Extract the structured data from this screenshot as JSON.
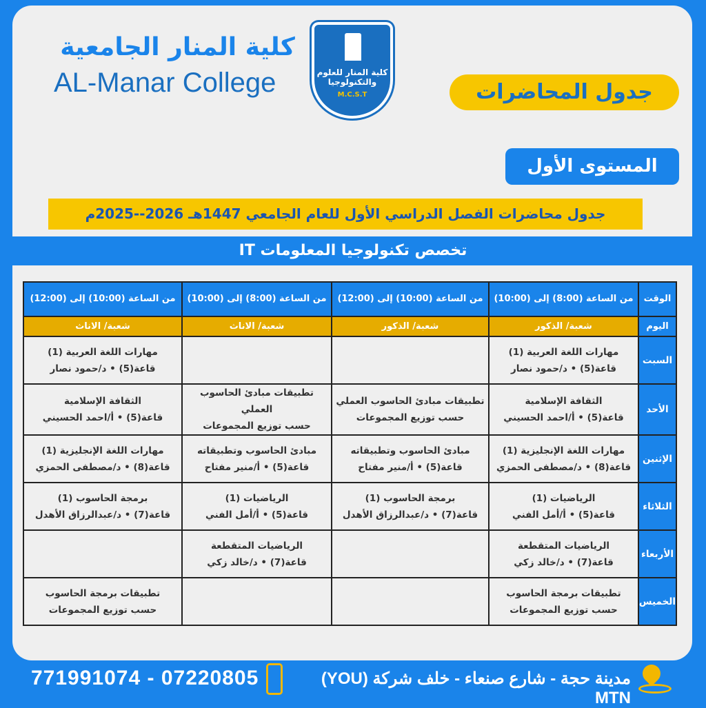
{
  "header": {
    "logo_ar": "كلية المنار الجامعية",
    "logo_en": "AL-Manar College",
    "emblem_text": "كلية المنار للعلوم والتكنولوجيا",
    "emblem_abbr": "M.C.S.T"
  },
  "title": "جدول المحاضرات",
  "level": "المستوى الأول",
  "banner": "جدول محاضرات الفصل الدراسي الأول للعام الجامعي 1447هـ 2026--2025م",
  "major": "تخصص تكنولوجيا المعلومات IT",
  "colors": {
    "blue": "#1a84ea",
    "yellow": "#f7c600",
    "gold": "#e6ac00"
  },
  "table": {
    "time_label": "الوقت",
    "day_label": "اليوم",
    "times": [
      "من الساعة (8:00) إلى (10:00)",
      "من الساعة (10:00) إلى (12:00)",
      "من الساعة (8:00) إلى (10:00)",
      "من الساعة (10:00) إلى (12:00)"
    ],
    "sections": [
      "شعبة/ الذكور",
      "شعبة/ الذكور",
      "شعبة/ الاناث",
      "شعبة/ الاناث"
    ],
    "rows": [
      {
        "day": "السبت",
        "cells": [
          [
            "مهارات اللغة العربية (1)",
            "قاعة(5) • د/حمود نصار"
          ],
          [],
          [],
          [
            "مهارات اللغة العربية (1)",
            "قاعة(5) • د/حمود نصار"
          ]
        ]
      },
      {
        "day": "الأحد",
        "cells": [
          [
            "الثقافة الإسلامية",
            "قاعة(5) • أ/احمد الحسيني"
          ],
          [
            "تطبيقات مبادئ الحاسوب العملي",
            "حسب توزيع المجموعات"
          ],
          [
            "تطبيقات مبادئ الحاسوب العملي",
            "حسب توزيع المجموعات"
          ],
          [
            "الثقافة الإسلامية",
            "قاعة(5) • أ/احمد الحسيني"
          ]
        ]
      },
      {
        "day": "الإثنين",
        "cells": [
          [
            "مهارات اللغة الإنجليزية (1)",
            "قاعة(8) • د/مصطفى الحمزي"
          ],
          [
            "مبادئ الحاسوب وتطبيقاته",
            "قاعة(5) • أ/منير مفتاح"
          ],
          [
            "مبادئ الحاسوب وتطبيقاته",
            "قاعة(5) • أ/منير مفتاح"
          ],
          [
            "مهارات اللغة الإنجليزية (1)",
            "قاعة(8) • د/مصطفى الحمزي"
          ]
        ]
      },
      {
        "day": "الثلاثاء",
        "cells": [
          [
            "الرياضيات (1)",
            "قاعة(5) • أ/أمل الفني"
          ],
          [
            "برمجة الحاسوب (1)",
            "قاعة(7) • د/عبدالرزاق الأهدل"
          ],
          [
            "الرياضيات (1)",
            "قاعة(5) • أ/أمل الفني"
          ],
          [
            "برمجة الحاسوب (1)",
            "قاعة(7) • د/عبدالرزاق الأهدل"
          ]
        ]
      },
      {
        "day": "الأربعاء",
        "cells": [
          [
            "الرياضيات المتقطعة",
            "قاعة(7) • د/خالد زكي"
          ],
          [],
          [
            "الرياضيات المتقطعة",
            "قاعة(7) • د/خالد زكي"
          ],
          []
        ]
      },
      {
        "day": "الخميس",
        "cells": [
          [
            "تطبيقات برمجة الحاسوب",
            "حسب توزيع المجموعات"
          ],
          [],
          [],
          [
            "تطبيقات برمجة الحاسوب",
            "حسب توزيع المجموعات"
          ]
        ]
      }
    ]
  },
  "footer": {
    "address": "مدينة حجة - شارع صنعاء - خلف شركة (YOU) MTN",
    "phones": "771991074 - 07220805"
  }
}
